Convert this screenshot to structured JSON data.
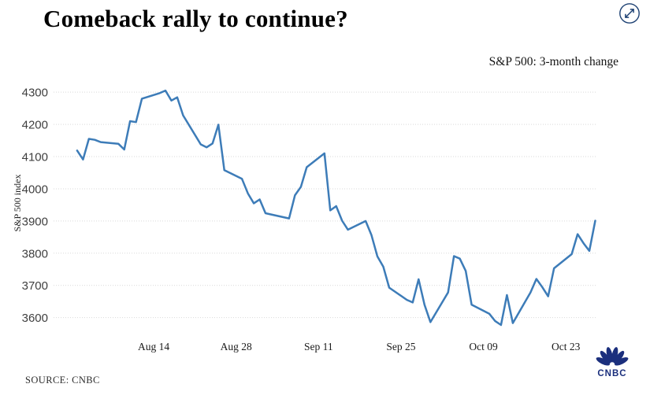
{
  "header": {
    "title": "Comeback rally to continue?",
    "subtitle": "S&P 500: 3-month change"
  },
  "footer": {
    "source_label": "SOURCE: CNBC",
    "logo_text": "CNBC"
  },
  "colors": {
    "line": "#3d7cb8",
    "grid": "#d9d9d9",
    "axis_text": "#3f3f3f",
    "date_text": "#1a1a1a",
    "icon_navy": "#1d4173",
    "logo_navy": "#1b2f7d"
  },
  "chart_data": {
    "type": "line",
    "title": "Comeback rally to continue?",
    "subtitle": "S&P 500: 3-month change",
    "xlabel": "",
    "ylabel": "S&P 500 index",
    "x_tick_labels": [
      "Aug 14",
      "Aug 28",
      "Sep 11",
      "Sep 25",
      "Oct 09",
      "Oct 23"
    ],
    "y_ticks": [
      3600,
      3700,
      3800,
      3900,
      4000,
      4100,
      4200,
      4300
    ],
    "ylim": [
      3560,
      4342
    ],
    "grid": "horizontal-dotted",
    "legend_position": "none",
    "series": [
      {
        "name": "S&P 500 index",
        "points": [
          {
            "date": "Aug 1",
            "value": 4119
          },
          {
            "date": "Aug 2",
            "value": 4091
          },
          {
            "date": "Aug 3",
            "value": 4155
          },
          {
            "date": "Aug 4",
            "value": 4152
          },
          {
            "date": "Aug 5",
            "value": 4145
          },
          {
            "date": "Aug 8",
            "value": 4140
          },
          {
            "date": "Aug 9",
            "value": 4122
          },
          {
            "date": "Aug 10",
            "value": 4210
          },
          {
            "date": "Aug 11",
            "value": 4207
          },
          {
            "date": "Aug 12",
            "value": 4280
          },
          {
            "date": "Aug 15",
            "value": 4297
          },
          {
            "date": "Aug 16",
            "value": 4305
          },
          {
            "date": "Aug 17",
            "value": 4274
          },
          {
            "date": "Aug 18",
            "value": 4284
          },
          {
            "date": "Aug 19",
            "value": 4228
          },
          {
            "date": "Aug 22",
            "value": 4138
          },
          {
            "date": "Aug 23",
            "value": 4129
          },
          {
            "date": "Aug 24",
            "value": 4141
          },
          {
            "date": "Aug 25",
            "value": 4199
          },
          {
            "date": "Aug 26",
            "value": 4058
          },
          {
            "date": "Aug 29",
            "value": 4031
          },
          {
            "date": "Aug 30",
            "value": 3986
          },
          {
            "date": "Aug 31",
            "value": 3955
          },
          {
            "date": "Sep 1",
            "value": 3967
          },
          {
            "date": "Sep 2",
            "value": 3924
          },
          {
            "date": "Sep 6",
            "value": 3908
          },
          {
            "date": "Sep 7",
            "value": 3980
          },
          {
            "date": "Sep 8",
            "value": 4006
          },
          {
            "date": "Sep 9",
            "value": 4067
          },
          {
            "date": "Sep 12",
            "value": 4110
          },
          {
            "date": "Sep 13",
            "value": 3933
          },
          {
            "date": "Sep 14",
            "value": 3946
          },
          {
            "date": "Sep 15",
            "value": 3901
          },
          {
            "date": "Sep 16",
            "value": 3873
          },
          {
            "date": "Sep 19",
            "value": 3900
          },
          {
            "date": "Sep 20",
            "value": 3856
          },
          {
            "date": "Sep 21",
            "value": 3790
          },
          {
            "date": "Sep 22",
            "value": 3758
          },
          {
            "date": "Sep 23",
            "value": 3693
          },
          {
            "date": "Sep 26",
            "value": 3655
          },
          {
            "date": "Sep 27",
            "value": 3647
          },
          {
            "date": "Sep 28",
            "value": 3719
          },
          {
            "date": "Sep 29",
            "value": 3640
          },
          {
            "date": "Sep 30",
            "value": 3586
          },
          {
            "date": "Oct 3",
            "value": 3678
          },
          {
            "date": "Oct 4",
            "value": 3791
          },
          {
            "date": "Oct 5",
            "value": 3783
          },
          {
            "date": "Oct 6",
            "value": 3745
          },
          {
            "date": "Oct 7",
            "value": 3640
          },
          {
            "date": "Oct 10",
            "value": 3612
          },
          {
            "date": "Oct 11",
            "value": 3589
          },
          {
            "date": "Oct 12",
            "value": 3577
          },
          {
            "date": "Oct 13",
            "value": 3670
          },
          {
            "date": "Oct 14",
            "value": 3583
          },
          {
            "date": "Oct 17",
            "value": 3678
          },
          {
            "date": "Oct 18",
            "value": 3720
          },
          {
            "date": "Oct 19",
            "value": 3695
          },
          {
            "date": "Oct 20",
            "value": 3666
          },
          {
            "date": "Oct 21",
            "value": 3753
          },
          {
            "date": "Oct 24",
            "value": 3797
          },
          {
            "date": "Oct 25",
            "value": 3859
          },
          {
            "date": "Oct 26",
            "value": 3831
          },
          {
            "date": "Oct 27",
            "value": 3807
          },
          {
            "date": "Oct 28",
            "value": 3901
          }
        ]
      }
    ]
  }
}
